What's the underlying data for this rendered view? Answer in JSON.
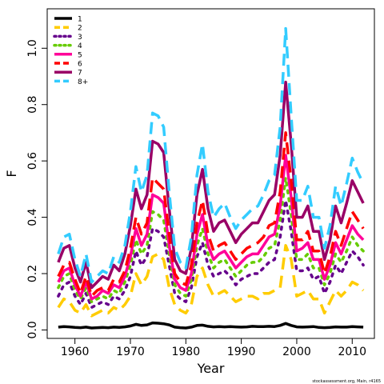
{
  "chart_data": {
    "type": "line",
    "xlabel": "Year",
    "ylabel": "F",
    "xlim": [
      1955,
      2014
    ],
    "ylim": [
      -0.03,
      1.14
    ],
    "x_ticks": [
      1960,
      1970,
      1980,
      1990,
      2000,
      2010
    ],
    "y_ticks": [
      0.0,
      0.2,
      0.4,
      0.6,
      0.8,
      1.0
    ],
    "x_tick_labels": [
      "1960",
      "1970",
      "1980",
      "1990",
      "2000",
      "2010"
    ],
    "y_tick_labels": [
      "0.0",
      "0.2",
      "0.4",
      "0.6",
      "0.8",
      "1.0"
    ],
    "grid": false,
    "legend_position": "top-left",
    "footnote": "stockassessment.org, Main, r4165",
    "x": [
      1957,
      1958,
      1959,
      1960,
      1961,
      1962,
      1963,
      1964,
      1965,
      1966,
      1967,
      1968,
      1969,
      1970,
      1971,
      1972,
      1973,
      1974,
      1975,
      1976,
      1977,
      1978,
      1979,
      1980,
      1981,
      1982,
      1983,
      1984,
      1985,
      1986,
      1987,
      1988,
      1989,
      1990,
      1991,
      1992,
      1993,
      1994,
      1995,
      1996,
      1997,
      1998,
      1999,
      2000,
      2001,
      2002,
      2003,
      2004,
      2005,
      2006,
      2007,
      2008,
      2009,
      2010,
      2011,
      2012
    ],
    "series": [
      {
        "name": "1",
        "color": "#000000",
        "dash": "solid",
        "values": [
          0.01,
          0.012,
          0.011,
          0.009,
          0.008,
          0.01,
          0.007,
          0.008,
          0.009,
          0.008,
          0.01,
          0.009,
          0.011,
          0.014,
          0.02,
          0.016,
          0.018,
          0.025,
          0.024,
          0.022,
          0.018,
          0.01,
          0.008,
          0.007,
          0.01,
          0.016,
          0.017,
          0.013,
          0.011,
          0.012,
          0.011,
          0.012,
          0.011,
          0.01,
          0.011,
          0.013,
          0.012,
          0.012,
          0.013,
          0.012,
          0.016,
          0.023,
          0.016,
          0.011,
          0.01,
          0.011,
          0.012,
          0.009,
          0.008,
          0.009,
          0.011,
          0.01,
          0.01,
          0.012,
          0.011,
          0.01
        ]
      },
      {
        "name": "2",
        "color": "#ffcc00",
        "dash": "dash",
        "values": [
          0.08,
          0.11,
          0.1,
          0.07,
          0.06,
          0.09,
          0.05,
          0.06,
          0.07,
          0.06,
          0.08,
          0.07,
          0.09,
          0.12,
          0.2,
          0.16,
          0.19,
          0.26,
          0.27,
          0.25,
          0.15,
          0.09,
          0.07,
          0.06,
          0.09,
          0.19,
          0.22,
          0.16,
          0.12,
          0.13,
          0.14,
          0.12,
          0.1,
          0.11,
          0.12,
          0.12,
          0.11,
          0.13,
          0.13,
          0.14,
          0.15,
          0.3,
          0.25,
          0.12,
          0.13,
          0.14,
          0.11,
          0.11,
          0.06,
          0.1,
          0.14,
          0.12,
          0.14,
          0.17,
          0.16,
          0.14
        ]
      },
      {
        "name": "3",
        "color": "#66008c",
        "dash": "dot",
        "values": [
          0.12,
          0.16,
          0.17,
          0.12,
          0.09,
          0.13,
          0.08,
          0.09,
          0.1,
          0.09,
          0.12,
          0.11,
          0.14,
          0.19,
          0.28,
          0.23,
          0.26,
          0.36,
          0.35,
          0.33,
          0.23,
          0.13,
          0.11,
          0.1,
          0.15,
          0.26,
          0.31,
          0.23,
          0.19,
          0.2,
          0.21,
          0.19,
          0.16,
          0.18,
          0.19,
          0.2,
          0.2,
          0.22,
          0.24,
          0.25,
          0.33,
          0.46,
          0.35,
          0.21,
          0.21,
          0.22,
          0.18,
          0.19,
          0.13,
          0.17,
          0.23,
          0.2,
          0.24,
          0.28,
          0.26,
          0.23
        ]
      },
      {
        "name": "4",
        "color": "#66cc00",
        "dash": "dot",
        "values": [
          0.15,
          0.19,
          0.2,
          0.14,
          0.11,
          0.15,
          0.1,
          0.11,
          0.12,
          0.11,
          0.14,
          0.13,
          0.17,
          0.23,
          0.32,
          0.27,
          0.3,
          0.42,
          0.41,
          0.39,
          0.27,
          0.16,
          0.13,
          0.12,
          0.18,
          0.3,
          0.36,
          0.27,
          0.22,
          0.24,
          0.25,
          0.22,
          0.19,
          0.21,
          0.23,
          0.24,
          0.24,
          0.26,
          0.29,
          0.3,
          0.39,
          0.54,
          0.41,
          0.25,
          0.25,
          0.27,
          0.22,
          0.22,
          0.16,
          0.2,
          0.27,
          0.24,
          0.28,
          0.33,
          0.3,
          0.28
        ]
      },
      {
        "name": "5",
        "color": "#ff0099",
        "dash": "solid",
        "values": [
          0.17,
          0.21,
          0.22,
          0.16,
          0.12,
          0.17,
          0.11,
          0.12,
          0.14,
          0.13,
          0.16,
          0.15,
          0.19,
          0.26,
          0.36,
          0.3,
          0.34,
          0.48,
          0.47,
          0.45,
          0.3,
          0.18,
          0.15,
          0.14,
          0.2,
          0.34,
          0.41,
          0.3,
          0.25,
          0.27,
          0.28,
          0.25,
          0.22,
          0.24,
          0.26,
          0.27,
          0.27,
          0.3,
          0.33,
          0.34,
          0.44,
          0.62,
          0.47,
          0.28,
          0.29,
          0.31,
          0.25,
          0.25,
          0.18,
          0.23,
          0.31,
          0.27,
          0.32,
          0.37,
          0.34,
          0.32
        ]
      },
      {
        "name": "6",
        "color": "#ff0000",
        "dash": "dash",
        "values": [
          0.19,
          0.23,
          0.24,
          0.18,
          0.13,
          0.19,
          0.12,
          0.14,
          0.15,
          0.14,
          0.18,
          0.17,
          0.21,
          0.29,
          0.4,
          0.34,
          0.38,
          0.54,
          0.52,
          0.5,
          0.34,
          0.2,
          0.17,
          0.16,
          0.23,
          0.38,
          0.46,
          0.34,
          0.28,
          0.3,
          0.31,
          0.28,
          0.25,
          0.27,
          0.29,
          0.3,
          0.31,
          0.33,
          0.37,
          0.38,
          0.49,
          0.7,
          0.53,
          0.32,
          0.32,
          0.35,
          0.28,
          0.28,
          0.2,
          0.26,
          0.35,
          0.3,
          0.36,
          0.42,
          0.39,
          0.36
        ]
      },
      {
        "name": "7",
        "color": "#990066",
        "dash": "solid",
        "values": [
          0.24,
          0.29,
          0.3,
          0.22,
          0.17,
          0.24,
          0.15,
          0.17,
          0.19,
          0.18,
          0.23,
          0.21,
          0.27,
          0.37,
          0.5,
          0.43,
          0.48,
          0.67,
          0.66,
          0.63,
          0.43,
          0.25,
          0.21,
          0.2,
          0.29,
          0.48,
          0.57,
          0.43,
          0.35,
          0.38,
          0.39,
          0.35,
          0.31,
          0.34,
          0.36,
          0.38,
          0.38,
          0.42,
          0.46,
          0.48,
          0.62,
          0.88,
          0.66,
          0.4,
          0.4,
          0.44,
          0.35,
          0.35,
          0.25,
          0.32,
          0.44,
          0.38,
          0.45,
          0.53,
          0.49,
          0.45
        ]
      },
      {
        "name": "8+",
        "color": "#33ccff",
        "dash": "dash",
        "values": [
          0.27,
          0.33,
          0.34,
          0.25,
          0.19,
          0.27,
          0.17,
          0.19,
          0.21,
          0.2,
          0.26,
          0.24,
          0.3,
          0.42,
          0.58,
          0.49,
          0.55,
          0.77,
          0.76,
          0.72,
          0.49,
          0.29,
          0.24,
          0.22,
          0.33,
          0.55,
          0.66,
          0.49,
          0.4,
          0.43,
          0.45,
          0.4,
          0.36,
          0.39,
          0.41,
          0.43,
          0.44,
          0.48,
          0.53,
          0.55,
          0.72,
          1.07,
          0.76,
          0.46,
          0.46,
          0.51,
          0.4,
          0.4,
          0.29,
          0.37,
          0.51,
          0.44,
          0.52,
          0.61,
          0.56,
          0.52
        ]
      }
    ]
  }
}
